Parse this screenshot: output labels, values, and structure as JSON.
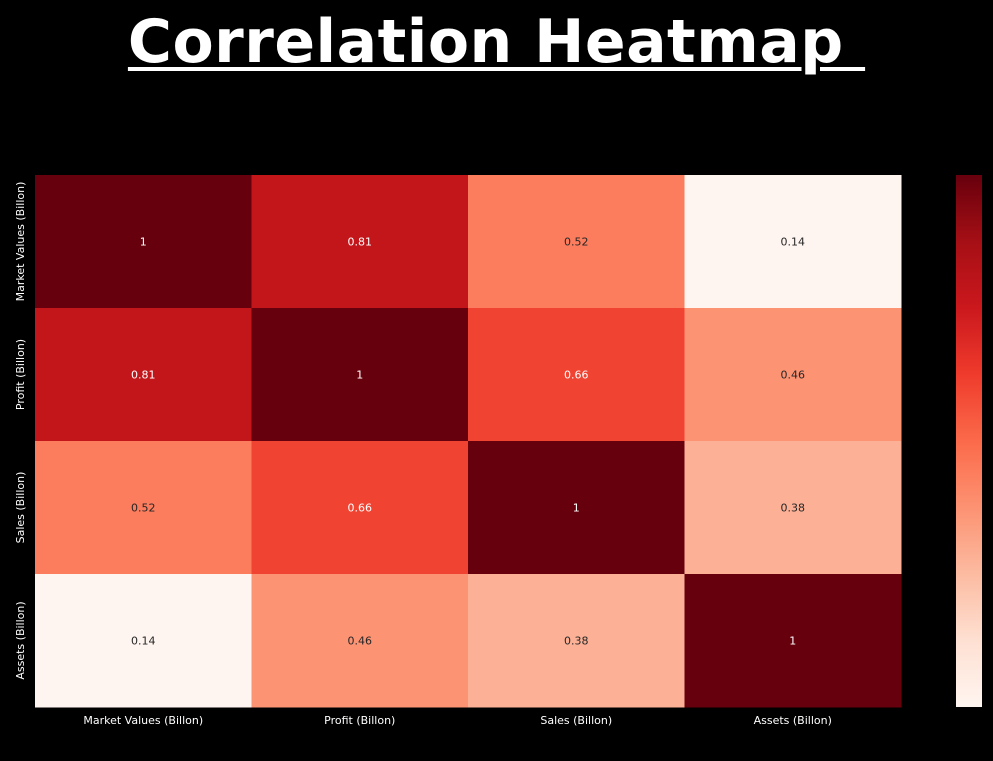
{
  "title": "Correlation Heatmap ",
  "chart_data": {
    "type": "heatmap",
    "title": "Correlation Heatmap",
    "x_categories": [
      "Market Values (Billon)",
      "Profit (Billon)",
      "Sales (Billon)",
      "Assets (Billon)"
    ],
    "y_categories": [
      "Market Values (Billon)",
      "Profit (Billon)",
      "Sales (Billon)",
      "Assets (Billon)"
    ],
    "values": [
      [
        1,
        0.81,
        0.52,
        0.14
      ],
      [
        0.81,
        1,
        0.66,
        0.46
      ],
      [
        0.52,
        0.66,
        1,
        0.38
      ],
      [
        0.14,
        0.46,
        0.38,
        1
      ]
    ],
    "labels": [
      [
        "1",
        "0.81",
        "0.52",
        "0.14"
      ],
      [
        "0.81",
        "1",
        "0.66",
        "0.46"
      ],
      [
        "0.52",
        "0.66",
        "1",
        "0.38"
      ],
      [
        "0.14",
        "0.46",
        "0.38",
        "1"
      ]
    ],
    "colormap": "Reds",
    "vmin": 0.14,
    "vmax": 1,
    "colorbar": true
  },
  "colors": {
    "background": "#000000",
    "text": "#ffffff",
    "dark_cell_text": "#ffffff",
    "light_cell_text": "#262626"
  }
}
